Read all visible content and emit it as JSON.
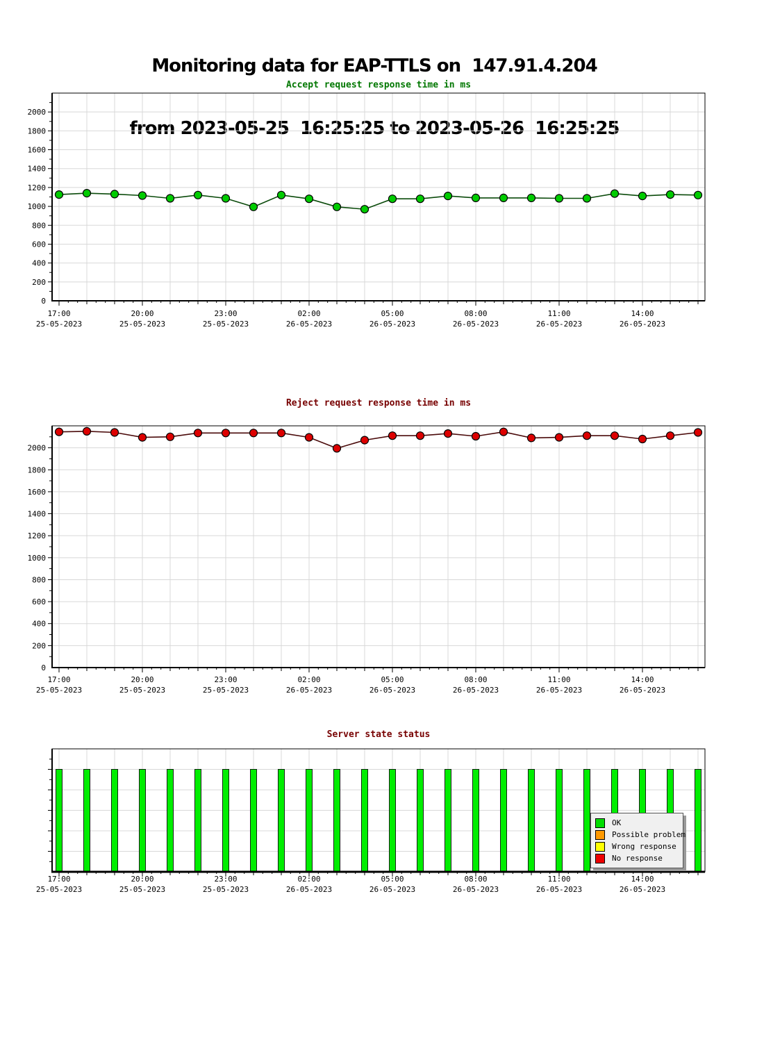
{
  "page_title": {
    "line1": "Monitoring data for EAP-TTLS on  147.91.4.204",
    "line2": "from 2023-05-25  16:25:25 to 2023-05-26  16:25:25"
  },
  "colors": {
    "background": "#ffffff",
    "grid": "#d8d8d8",
    "axis": "#000000",
    "tick_label": "#000000"
  },
  "x_axis": {
    "point_times": [
      "17:00",
      "18:00",
      "19:00",
      "20:00",
      "21:00",
      "22:00",
      "23:00",
      "00:00",
      "01:00",
      "02:00",
      "03:00",
      "04:00",
      "05:00",
      "06:00",
      "07:00",
      "08:00",
      "09:00",
      "10:00",
      "11:00",
      "12:00",
      "13:00",
      "14:00",
      "15:00",
      "16:00"
    ],
    "major_ticks": [
      {
        "index": 0,
        "time": "17:00",
        "date": "25-05-2023"
      },
      {
        "index": 3,
        "time": "20:00",
        "date": "25-05-2023"
      },
      {
        "index": 6,
        "time": "23:00",
        "date": "25-05-2023"
      },
      {
        "index": 9,
        "time": "02:00",
        "date": "26-05-2023"
      },
      {
        "index": 12,
        "time": "05:00",
        "date": "26-05-2023"
      },
      {
        "index": 15,
        "time": "08:00",
        "date": "26-05-2023"
      },
      {
        "index": 18,
        "time": "11:00",
        "date": "26-05-2023"
      },
      {
        "index": 21,
        "time": "14:00",
        "date": "26-05-2023"
      }
    ]
  },
  "chart_data": [
    {
      "type": "line",
      "title": "Accept request response time in ms",
      "title_color": "#007700",
      "line_color": "#0a4a0a",
      "marker_fill": "#00cc00",
      "marker_stroke": "#000000",
      "ylim": [
        0,
        2200
      ],
      "ytick_step": 200,
      "ytick_max_label": 2000,
      "grid": true,
      "x": [
        "17:00",
        "18:00",
        "19:00",
        "20:00",
        "21:00",
        "22:00",
        "23:00",
        "00:00",
        "01:00",
        "02:00",
        "03:00",
        "04:00",
        "05:00",
        "06:00",
        "07:00",
        "08:00",
        "09:00",
        "10:00",
        "11:00",
        "12:00",
        "13:00",
        "14:00",
        "15:00",
        "16:00"
      ],
      "values": [
        1125,
        1140,
        1130,
        1115,
        1085,
        1120,
        1085,
        995,
        1120,
        1080,
        995,
        970,
        1080,
        1080,
        1110,
        1090,
        1090,
        1090,
        1085,
        1085,
        1135,
        1110,
        1125,
        1120
      ]
    },
    {
      "type": "line",
      "title": "Reject request response time in ms",
      "title_color": "#770000",
      "line_color": "#4a0a0a",
      "marker_fill": "#dd0000",
      "marker_stroke": "#000000",
      "ylim": [
        0,
        2200
      ],
      "ytick_step": 200,
      "ytick_max_label": 2000,
      "grid": true,
      "x": [
        "17:00",
        "18:00",
        "19:00",
        "20:00",
        "21:00",
        "22:00",
        "23:00",
        "00:00",
        "01:00",
        "02:00",
        "03:00",
        "04:00",
        "05:00",
        "06:00",
        "07:00",
        "08:00",
        "09:00",
        "10:00",
        "11:00",
        "12:00",
        "13:00",
        "14:00",
        "15:00",
        "16:00"
      ],
      "values": [
        2145,
        2150,
        2140,
        2095,
        2100,
        2135,
        2135,
        2135,
        2135,
        2095,
        1995,
        2070,
        2110,
        2110,
        2130,
        2105,
        2145,
        2090,
        2095,
        2110,
        2110,
        2080,
        2110,
        2140
      ]
    },
    {
      "type": "bar",
      "title": "Server state status",
      "title_color": "#770000",
      "bar_fill": "#00ee00",
      "bar_stroke": "#112211",
      "ylim": [
        0,
        1.2
      ],
      "grid": true,
      "legend_position": "inside-right",
      "x": [
        "17:00",
        "18:00",
        "19:00",
        "20:00",
        "21:00",
        "22:00",
        "23:00",
        "00:00",
        "01:00",
        "02:00",
        "03:00",
        "04:00",
        "05:00",
        "06:00",
        "07:00",
        "08:00",
        "09:00",
        "10:00",
        "11:00",
        "12:00",
        "13:00",
        "14:00",
        "15:00",
        "16:00"
      ],
      "statuses": [
        "OK",
        "OK",
        "OK",
        "OK",
        "OK",
        "OK",
        "OK",
        "OK",
        "OK",
        "OK",
        "OK",
        "OK",
        "OK",
        "OK",
        "OK",
        "OK",
        "OK",
        "OK",
        "OK",
        "OK",
        "OK",
        "OK",
        "OK",
        "OK"
      ],
      "values": [
        1,
        1,
        1,
        1,
        1,
        1,
        1,
        1,
        1,
        1,
        1,
        1,
        1,
        1,
        1,
        1,
        1,
        1,
        1,
        1,
        1,
        1,
        1,
        1
      ]
    }
  ],
  "legend": {
    "items": [
      {
        "label": "OK",
        "color": "#00dd00"
      },
      {
        "label": "Possible problem",
        "color": "#ff9900"
      },
      {
        "label": "Wrong response",
        "color": "#ffff00"
      },
      {
        "label": "No response",
        "color": "#ee0000"
      }
    ]
  }
}
